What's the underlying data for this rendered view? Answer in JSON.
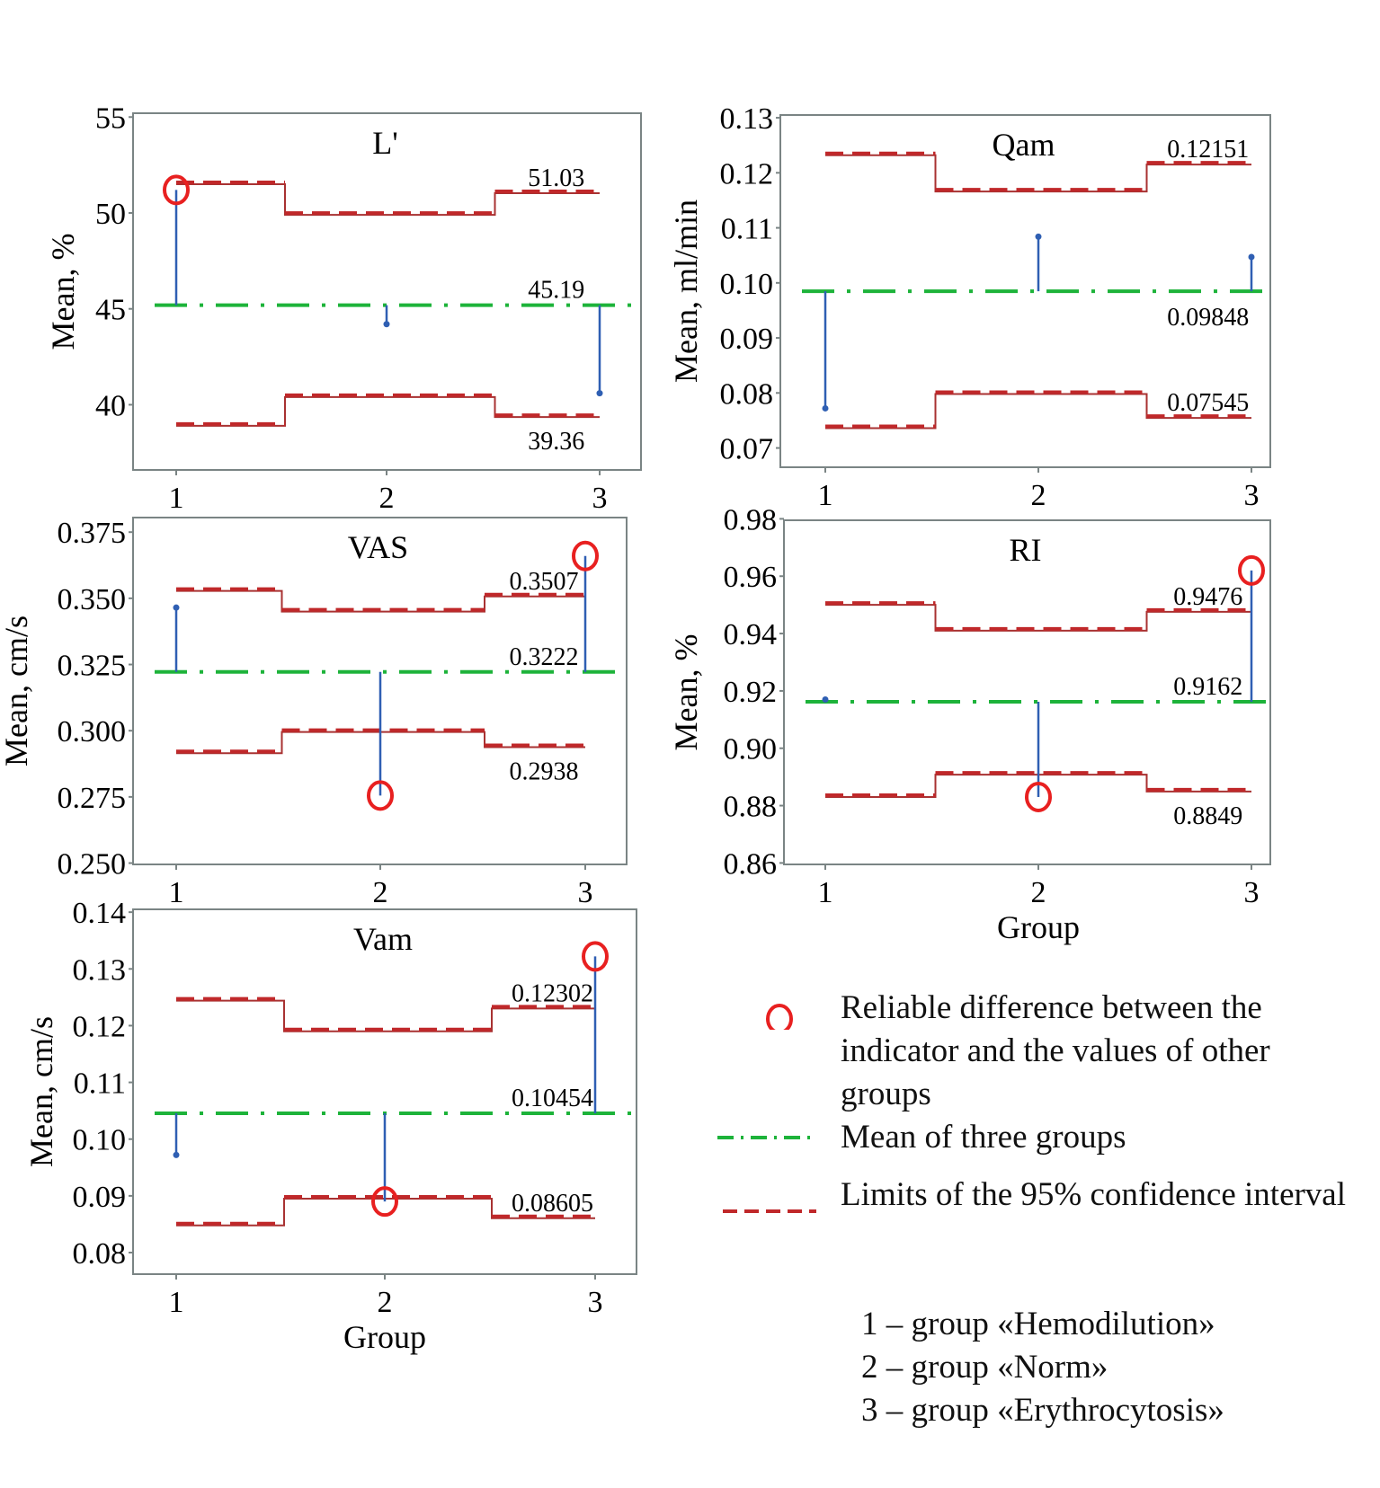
{
  "chart_data": [
    {
      "type": "line",
      "title": "L'",
      "xlabel": "",
      "ylabel": "Mean, %",
      "categories": [
        "1",
        "2",
        "3"
      ],
      "yticks": [
        40,
        45,
        50,
        55
      ],
      "ytick_labels": [
        "40",
        "45",
        "50",
        "55"
      ],
      "ylim": [
        36.6,
        55.2
      ],
      "grand_mean": 45.19,
      "grand_mean_label": "45.19",
      "group_means": [
        51.2,
        44.2,
        40.6
      ],
      "significant": [
        true,
        false,
        false
      ],
      "upper_limits": [
        51.5,
        49.9,
        51.03
      ],
      "lower_limits": [
        38.9,
        40.4,
        39.36
      ],
      "upper_label": "51.03",
      "lower_label": "39.36",
      "mean_label_position": "above",
      "upper_label_position": "above",
      "lower_label_position": "below"
    },
    {
      "type": "line",
      "title": "Qam",
      "xlabel": "",
      "ylabel": "Mean, ml/min",
      "categories": [
        "1",
        "2",
        "3"
      ],
      "yticks": [
        0.07,
        0.08,
        0.09,
        0.1,
        0.11,
        0.12,
        0.13
      ],
      "ytick_labels": [
        "0.07",
        "0.08",
        "0.09",
        "0.10",
        "0.11",
        "0.12",
        "0.13"
      ],
      "ylim": [
        0.0665,
        0.1305
      ],
      "grand_mean": 0.09848,
      "grand_mean_label": "0.09848",
      "group_means": [
        0.0772,
        0.1084,
        0.1047
      ],
      "significant": [
        false,
        false,
        false
      ],
      "upper_limits": [
        0.1232,
        0.1166,
        0.12151
      ],
      "lower_limits": [
        0.0736,
        0.0798,
        0.07545
      ],
      "upper_label": "0.12151",
      "lower_label": "0.07545",
      "mean_label_position": "below",
      "upper_label_position": "above",
      "lower_label_position": "above"
    },
    {
      "type": "line",
      "title": "VAS",
      "xlabel": "",
      "ylabel": "Mean, cm/s",
      "categories": [
        "1",
        "2",
        "3"
      ],
      "yticks": [
        0.25,
        0.275,
        0.3,
        0.325,
        0.35,
        0.375
      ],
      "ytick_labels": [
        "0.250",
        "0.275",
        "0.300",
        "0.325",
        "0.350",
        "0.375"
      ],
      "ylim": [
        0.2495,
        0.3805
      ],
      "grand_mean": 0.3222,
      "grand_mean_label": "0.3222",
      "group_means": [
        0.3465,
        0.2755,
        0.366
      ],
      "significant": [
        false,
        true,
        true
      ],
      "upper_limits": [
        0.3528,
        0.345,
        0.3507
      ],
      "lower_limits": [
        0.2915,
        0.2995,
        0.2938
      ],
      "upper_label": "0.3507",
      "lower_label": "0.2938",
      "mean_label_position": "above",
      "upper_label_position": "above",
      "lower_label_position": "below"
    },
    {
      "type": "line",
      "title": "RI",
      "xlabel": "Group",
      "ylabel": "Mean, %",
      "categories": [
        "1",
        "2",
        "3"
      ],
      "yticks": [
        0.86,
        0.88,
        0.9,
        0.92,
        0.94,
        0.96,
        0.98
      ],
      "ytick_labels": [
        "0.86",
        "0.88",
        "0.90",
        "0.92",
        "0.94",
        "0.96",
        "0.98"
      ],
      "ylim": [
        0.8595,
        0.9795
      ],
      "grand_mean": 0.9162,
      "grand_mean_label": "0.9162",
      "group_means": [
        0.917,
        0.883,
        0.962
      ],
      "significant": [
        false,
        true,
        true
      ],
      "upper_limits": [
        0.95,
        0.941,
        0.9476
      ],
      "lower_limits": [
        0.883,
        0.8908,
        0.8849
      ],
      "upper_label": "0.9476",
      "lower_label": "0.8849",
      "mean_label_position": "above",
      "upper_label_position": "above",
      "lower_label_position": "below"
    },
    {
      "type": "line",
      "title": "Vam",
      "xlabel": "Group",
      "ylabel": "Mean, cm/s",
      "categories": [
        "1",
        "2",
        "3"
      ],
      "yticks": [
        0.08,
        0.09,
        0.1,
        0.11,
        0.12,
        0.13,
        0.14
      ],
      "ytick_labels": [
        "0.08",
        "0.09",
        "0.10",
        "0.11",
        "0.12",
        "0.13",
        "0.14"
      ],
      "ylim": [
        0.0762,
        0.1405
      ],
      "grand_mean": 0.10454,
      "grand_mean_label": "0.10454",
      "group_means": [
        0.0972,
        0.089,
        0.1322
      ],
      "significant": [
        false,
        true,
        true
      ],
      "upper_limits": [
        0.1244,
        0.119,
        0.12302
      ],
      "lower_limits": [
        0.0848,
        0.0895,
        0.08605
      ],
      "upper_label": "0.12302",
      "lower_label": "0.08605",
      "mean_label_position": "above",
      "upper_label_position": "above",
      "lower_label_position": "above"
    }
  ],
  "legend": {
    "items": [
      {
        "symbol": "red-circle",
        "label": "Reliable difference between the indicator and the values of other groups"
      },
      {
        "symbol": "green-dash-dot",
        "label": "Mean of three groups"
      },
      {
        "symbol": "red-dashed",
        "label": "Limits of the 95% confidence interval"
      }
    ],
    "groups": [
      "1 – group «Hemodilution»",
      "2 – group «Norm»",
      "3 – group «Erythrocytosis»"
    ]
  },
  "colors": {
    "grand_mean": "#1db33a",
    "limit": "#c0282a",
    "limit_step": "#a83232",
    "stem": "#2f5fb3",
    "significant_marker": "#e82020",
    "frame": "#7a8484"
  }
}
